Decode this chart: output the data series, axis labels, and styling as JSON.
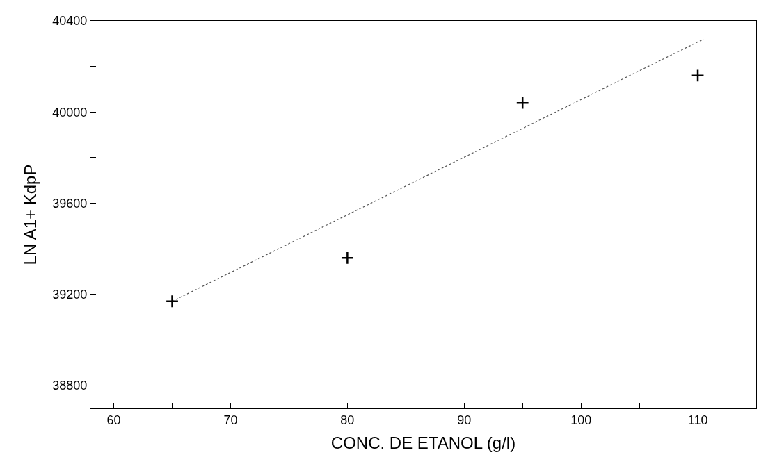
{
  "chart_data": {
    "type": "scatter",
    "xlabel": "CONC. DE ETANOL (g/l)",
    "ylabel": "LN A1+ KdpP",
    "xlim": [
      58,
      115
    ],
    "ylim": [
      38700,
      40400
    ],
    "xticks": [
      60,
      {
        "value": 65,
        "label": null
      },
      70,
      {
        "value": 75,
        "label": null
      },
      80,
      {
        "value": 85,
        "label": null
      },
      90,
      {
        "value": 95,
        "label": null
      },
      100,
      {
        "value": 105,
        "label": null
      },
      110
    ],
    "yticks": [
      38800,
      {
        "value": 39000,
        "label": null
      },
      39200,
      {
        "value": 39400,
        "label": null
      },
      39600,
      {
        "value": 39800,
        "label": null
      },
      40000,
      {
        "value": 40200,
        "label": null
      },
      40400
    ],
    "marker": "cross",
    "series": [
      {
        "color": "#000000",
        "x": [
          65,
          80,
          95,
          110
        ],
        "values": [
          39170,
          39360,
          40040,
          40160
        ]
      },
      {
        "type": "line",
        "color": "#555555",
        "line_style": "dotted",
        "marker": "none",
        "x": [
          65,
          110.5
        ],
        "values": [
          39170,
          40320
        ]
      }
    ]
  }
}
